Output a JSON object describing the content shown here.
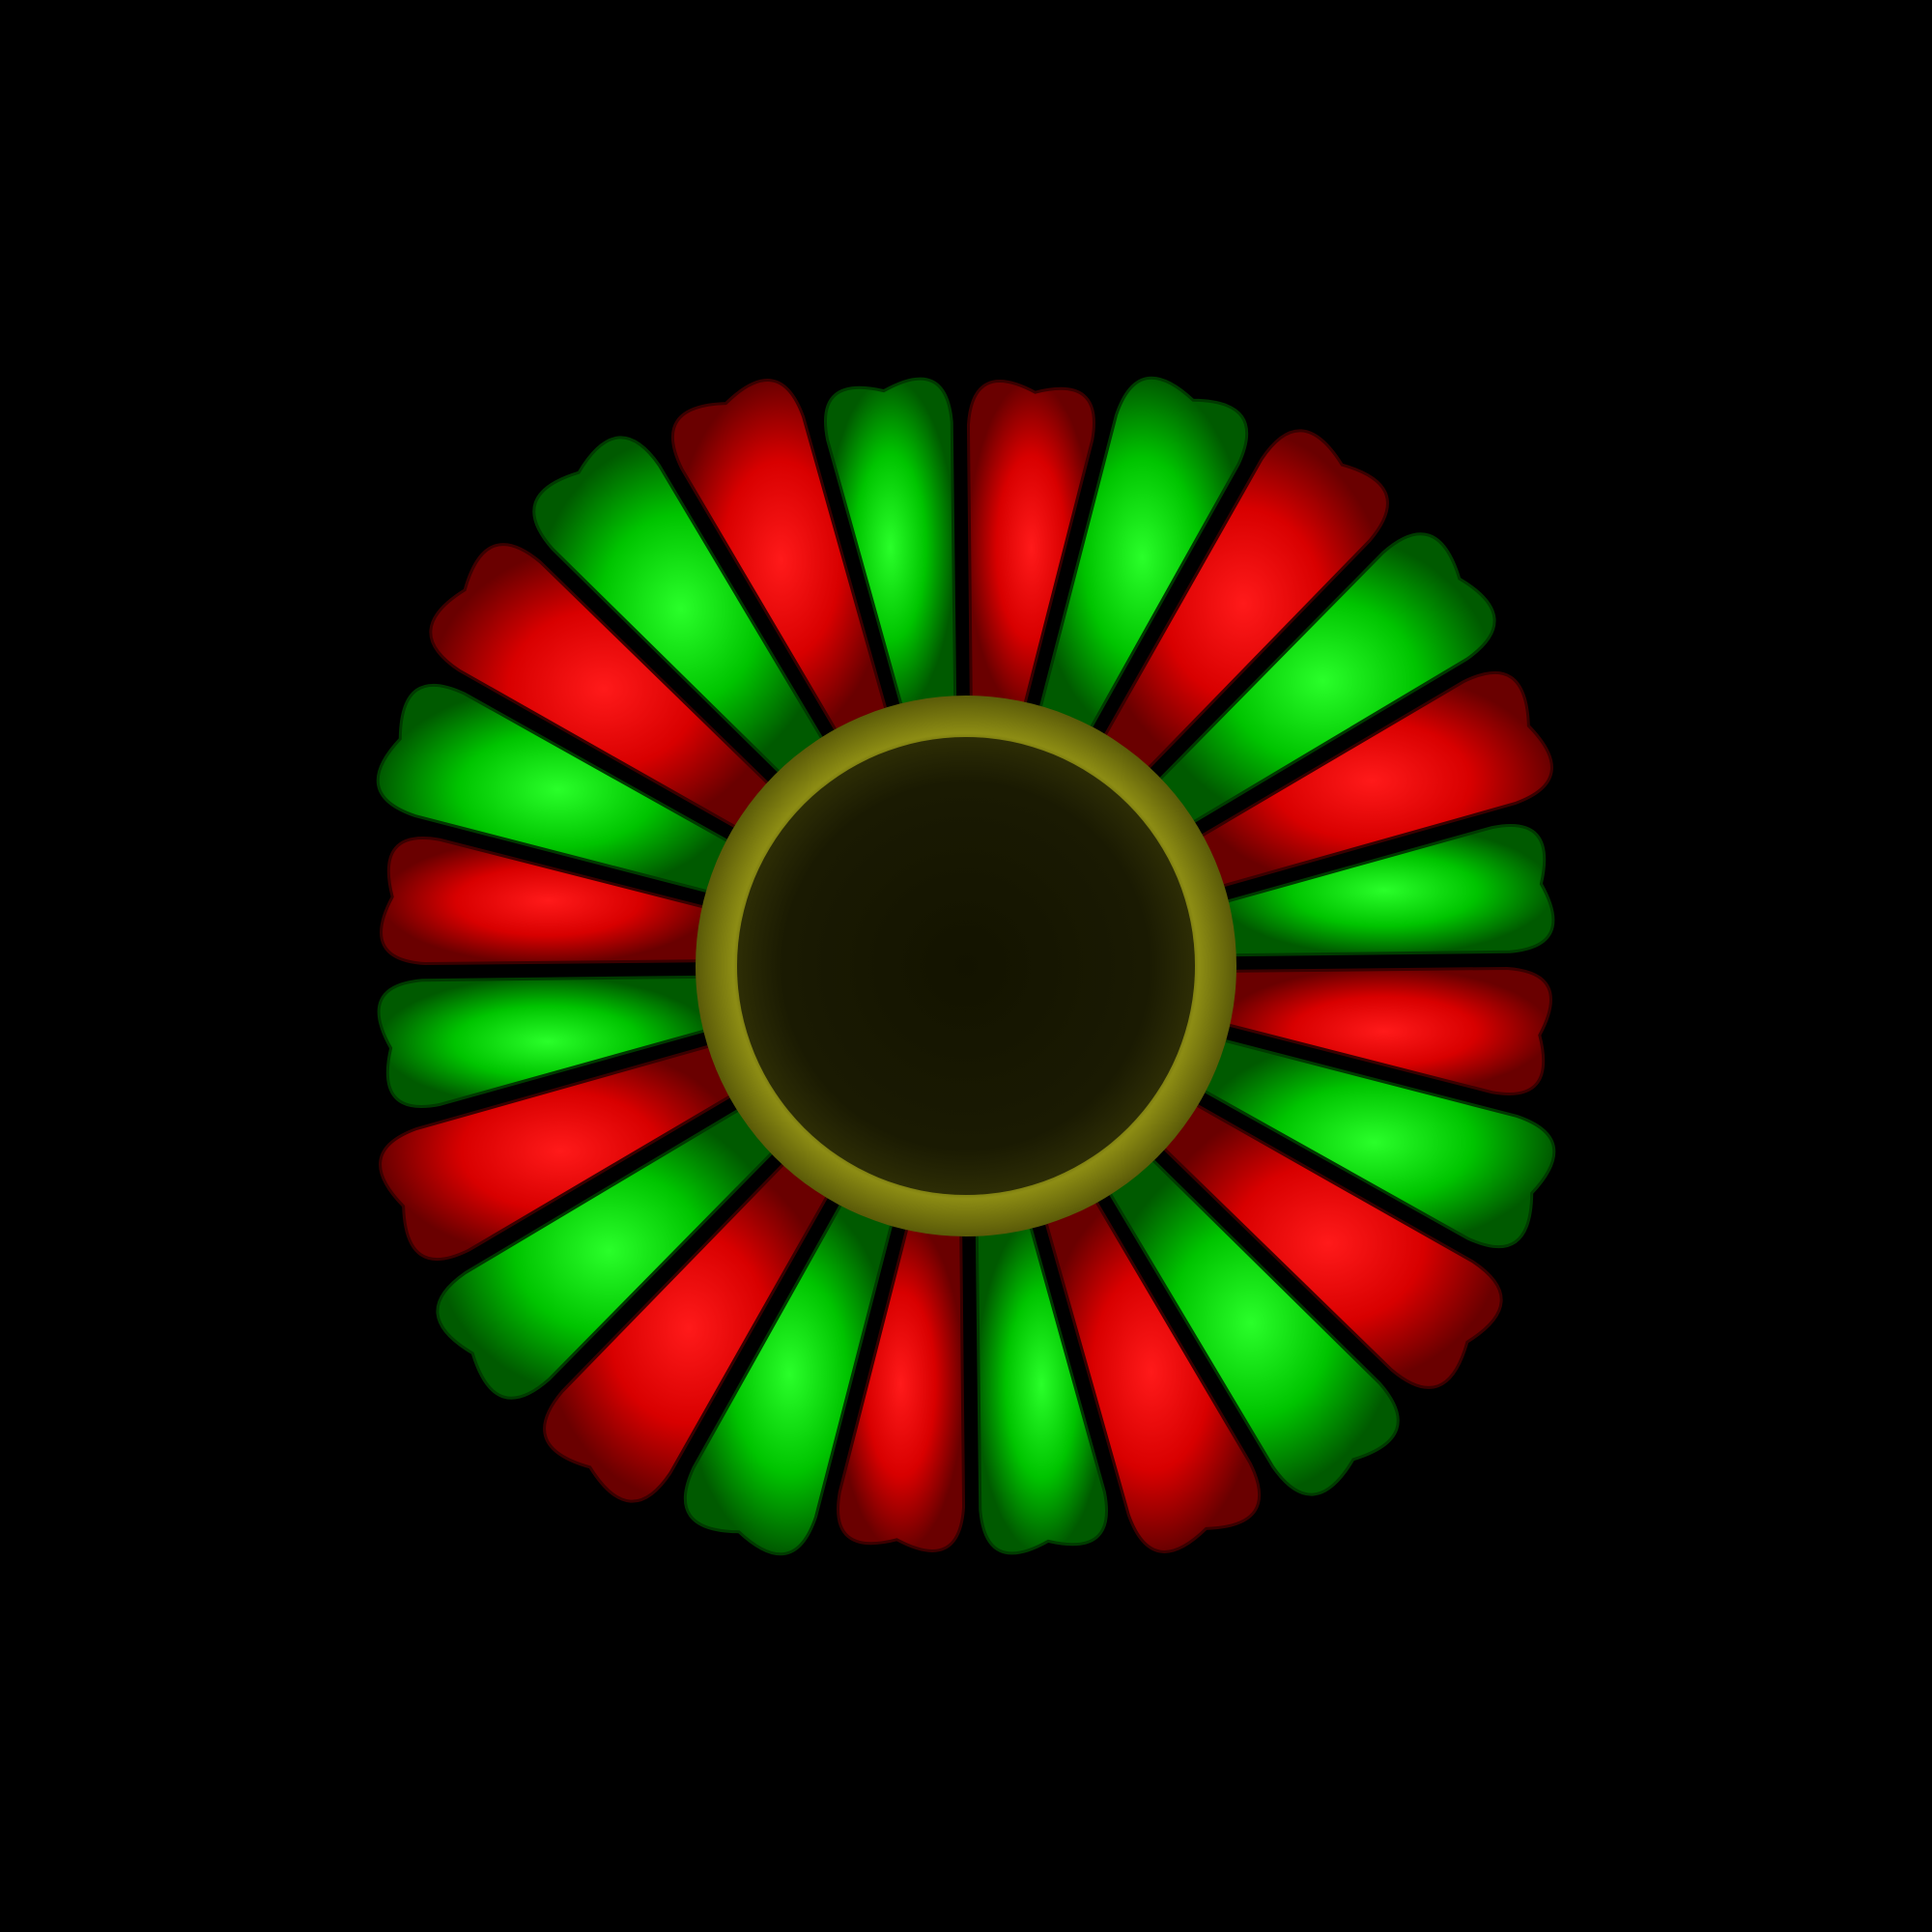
{
  "scene": {
    "background_color": "#000000",
    "lobe_colors": {
      "positive": "#ff0a0a",
      "negative": "#12ee12"
    },
    "core_color": "#141400",
    "ring_color": "#8a8a12",
    "lobe_count": 24
  }
}
